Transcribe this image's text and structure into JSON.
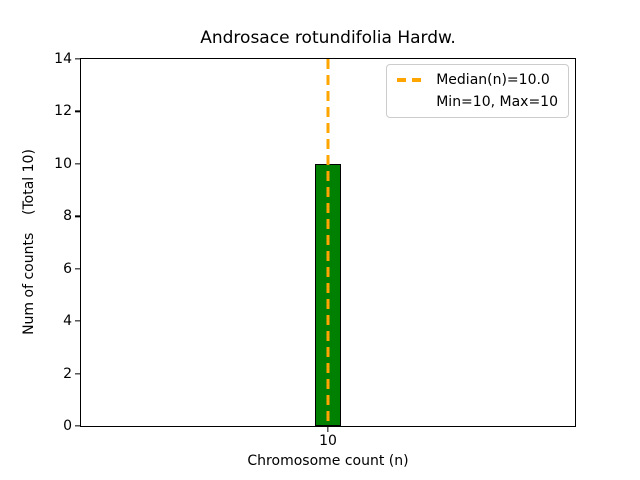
{
  "chart_data": {
    "type": "bar",
    "title": "Androsace rotundifolia Hardw.",
    "xlabel": "Chromosome count (n)",
    "ylabel": "Num of counts    (Total 10)",
    "categories": [
      "10"
    ],
    "values": [
      10
    ],
    "bar_color": "#008000",
    "bar_edge_color": "#000000",
    "ylim": [
      0,
      14
    ],
    "yticks": [
      0,
      2,
      4,
      6,
      8,
      10,
      12,
      14
    ],
    "grid": "off",
    "median_line": {
      "x": "10",
      "color": "#FFA500",
      "style": "dashed"
    },
    "legend": {
      "position": "top-right",
      "entries": [
        {
          "label": "Median(n)=10.0",
          "marker": "dashed-line",
          "marker_color": "#FFA500"
        },
        {
          "label": "Min=10, Max=10",
          "marker": "none"
        }
      ]
    }
  }
}
